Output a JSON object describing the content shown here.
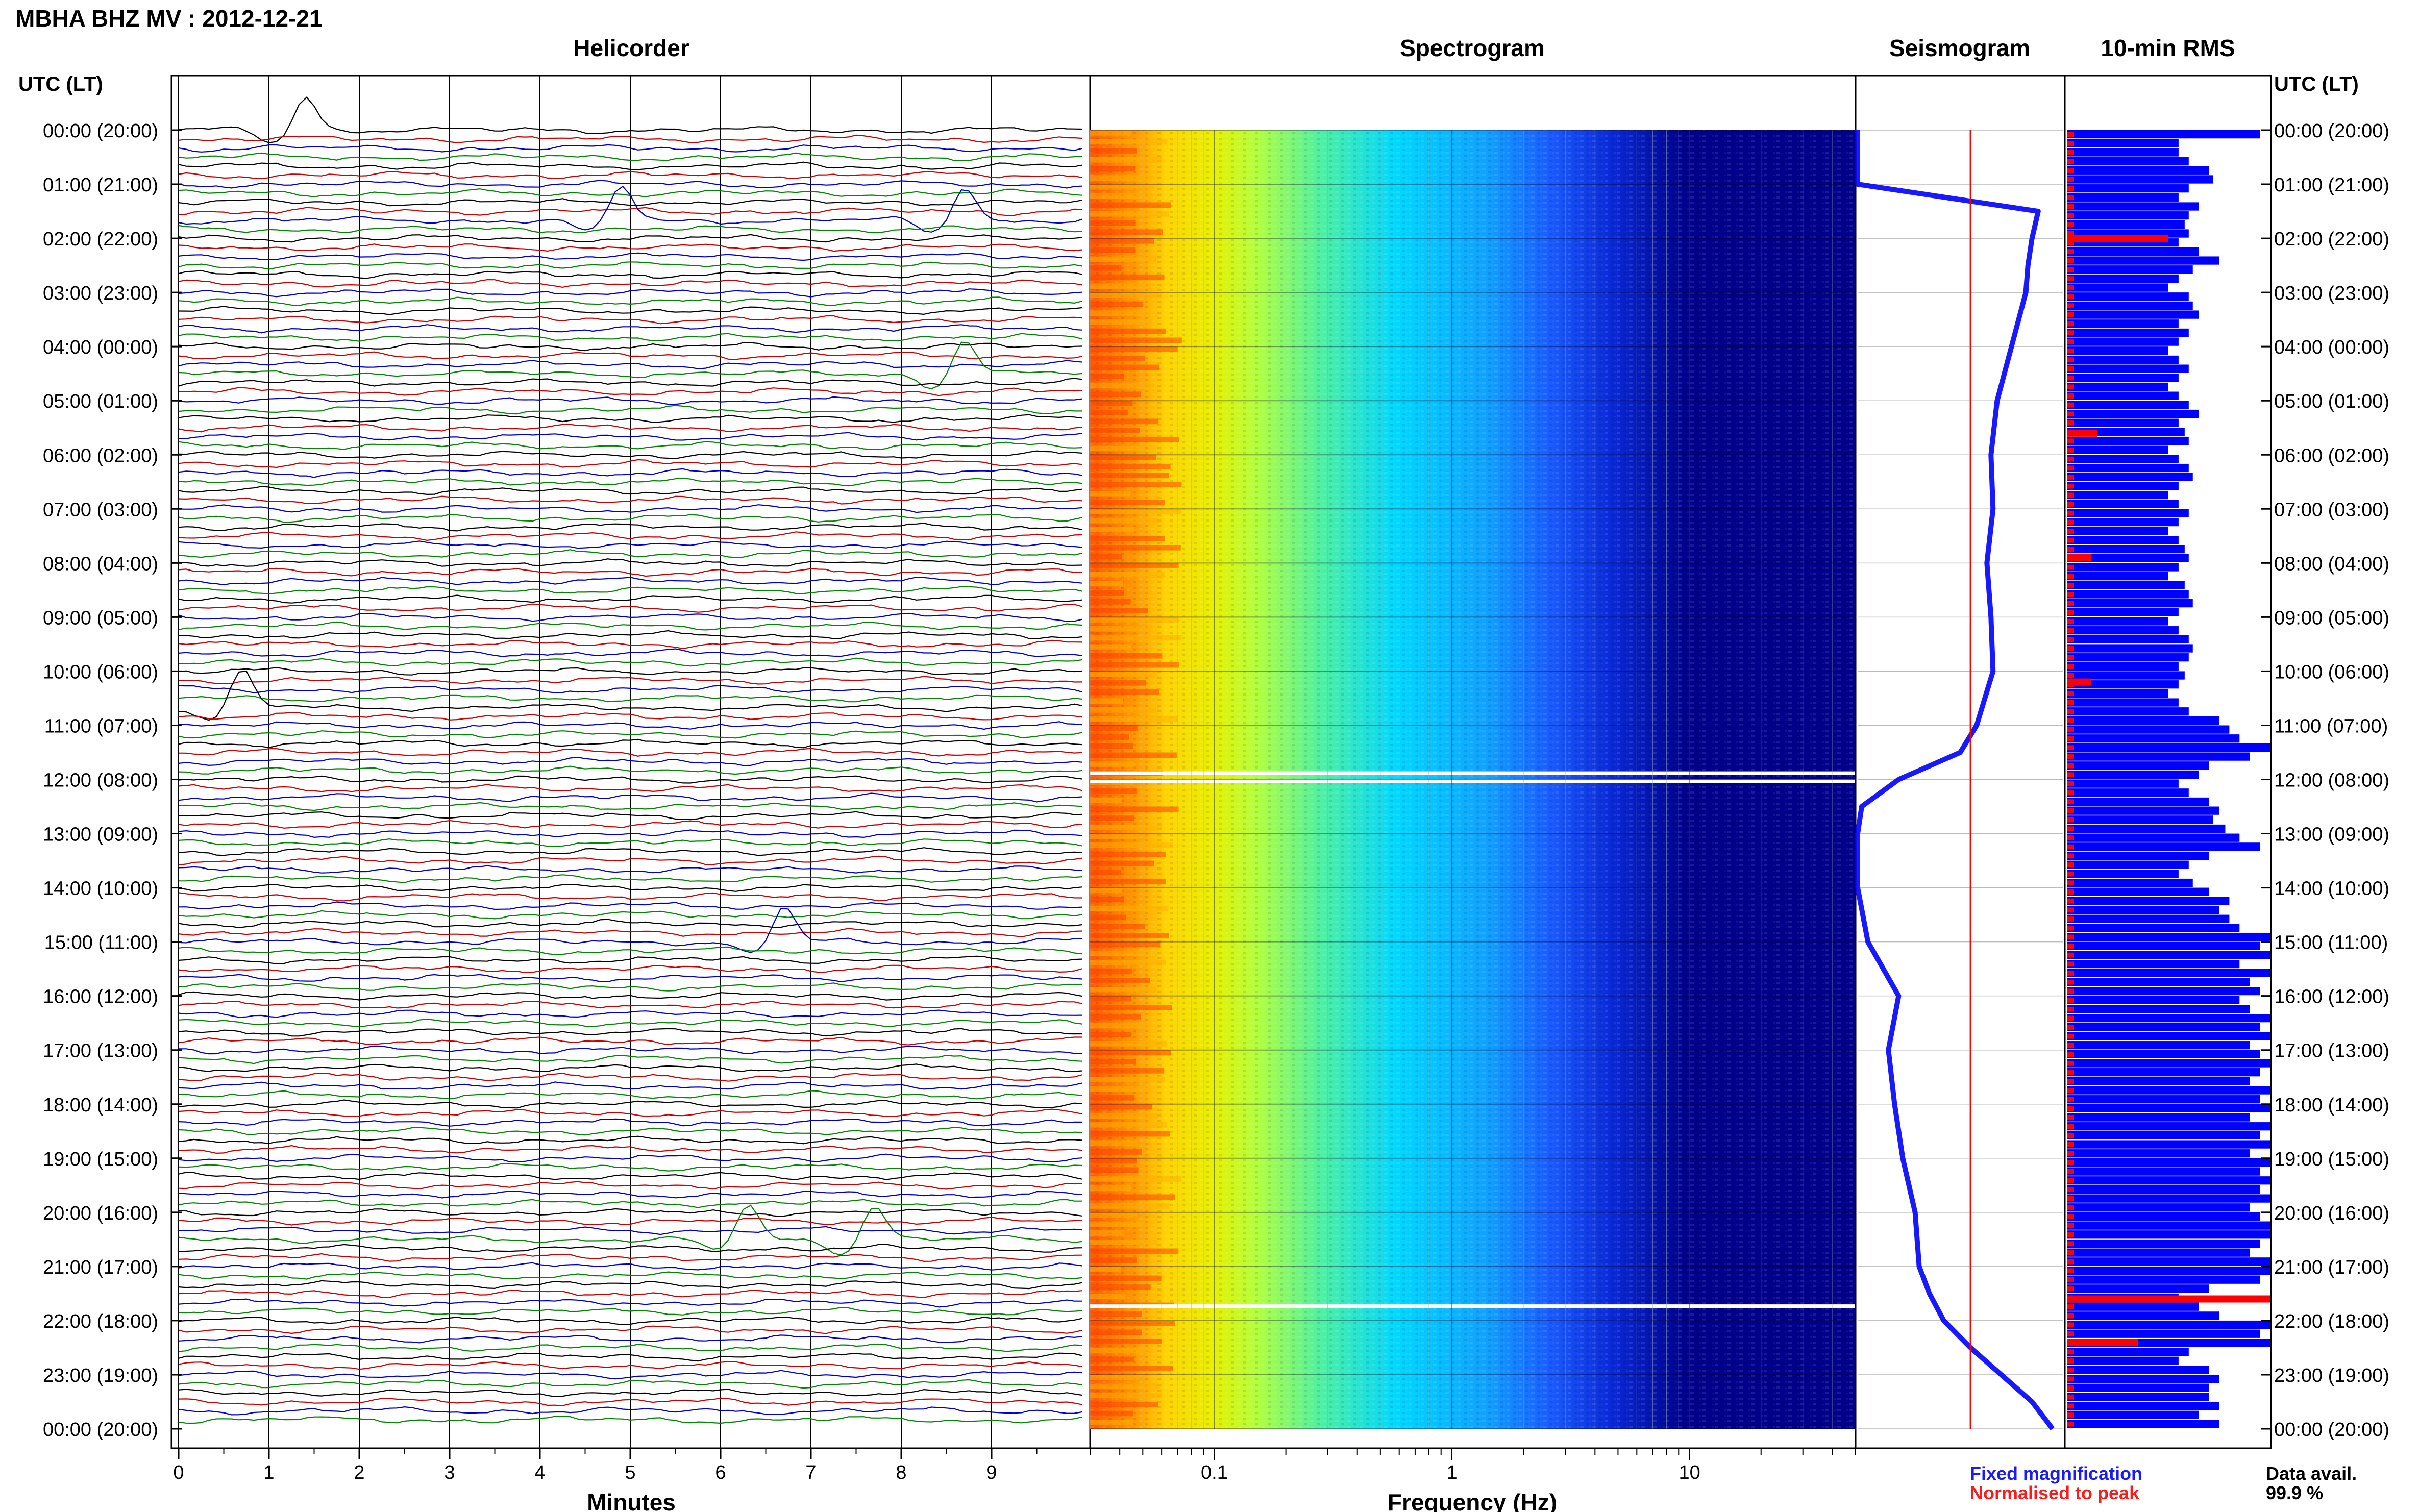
{
  "title": "MBHA BHZ MV : 2012-12-21",
  "panels": {
    "helicorder": "Helicorder",
    "spectrogram": "Spectrogram",
    "seismogram": "Seismogram",
    "rms": "10-min RMS"
  },
  "time_axis_label": "UTC (LT)",
  "time_labels": [
    "00:00 (20:00)",
    "01:00 (21:00)",
    "02:00 (22:00)",
    "03:00 (23:00)",
    "04:00 (00:00)",
    "05:00 (01:00)",
    "06:00 (02:00)",
    "07:00 (03:00)",
    "08:00 (04:00)",
    "09:00 (05:00)",
    "10:00 (06:00)",
    "11:00 (07:00)",
    "12:00 (08:00)",
    "13:00 (09:00)",
    "14:00 (10:00)",
    "15:00 (11:00)",
    "16:00 (12:00)",
    "17:00 (13:00)",
    "18:00 (14:00)",
    "19:00 (15:00)",
    "20:00 (16:00)",
    "21:00 (17:00)",
    "22:00 (18:00)",
    "23:00 (19:00)",
    "00:00 (20:00)"
  ],
  "minutes_axis": {
    "label": "Minutes",
    "ticks": [
      "0",
      "1",
      "2",
      "3",
      "4",
      "5",
      "6",
      "7",
      "8",
      "9"
    ]
  },
  "frequency_axis": {
    "label": "Frequency (Hz)",
    "ticks": [
      "0.1",
      "1",
      "10"
    ]
  },
  "legend": {
    "fixed": "Fixed magnification",
    "normalised": "Normalised to peak",
    "fixed_color": "#1a1aff",
    "normalised_color": "#ff1a1a"
  },
  "data_avail": {
    "label": "Data avail.",
    "value": "99.9 %"
  },
  "colors": {
    "trace_cycle": [
      "#000000",
      "#cc0000",
      "#0000cc",
      "#008800"
    ],
    "rms_fixed": "#0000ff",
    "rms_norm": "#ff0000",
    "spectro_low": "#00008b"
  },
  "chart_data": [
    {
      "type": "line",
      "title": "Helicorder",
      "xlabel": "Minutes",
      "xlim": [
        0,
        10
      ],
      "rows": 144,
      "row_minutes": 10,
      "events": [
        {
          "hour": 0.05,
          "minute": 1.4
        },
        {
          "hour": 1.8,
          "minute": 4.9
        },
        {
          "hour": 1.8,
          "minute": 8.7
        },
        {
          "hour": 4.5,
          "minute": 8.7
        },
        {
          "hour": 10.7,
          "minute": 0.7
        },
        {
          "hour": 15.0,
          "minute": 6.7
        },
        {
          "hour": 20.5,
          "minute": 6.3
        },
        {
          "hour": 20.5,
          "minute": 7.7
        }
      ]
    },
    {
      "type": "heatmap",
      "title": "Spectrogram",
      "xlabel": "Frequency (Hz)",
      "xscale": "log",
      "xlim": [
        0.03,
        50
      ],
      "gaps_hours": [
        11.85,
        12.0,
        21.7
      ]
    },
    {
      "type": "line",
      "title": "Seismogram",
      "series": [
        {
          "name": "Fixed magnification",
          "hours": [
            0,
            1,
            1.5,
            2,
            2.5,
            3,
            4,
            5,
            6,
            7,
            8,
            9,
            10,
            11,
            11.5,
            12,
            12.5,
            13,
            14,
            15,
            16,
            17,
            18,
            19,
            20,
            21,
            21.5,
            22,
            22.5,
            23,
            23.5,
            24
          ],
          "values": [
            0,
            0,
            0.88,
            0.85,
            0.83,
            0.82,
            0.75,
            0.68,
            0.65,
            0.66,
            0.63,
            0.65,
            0.66,
            0.58,
            0.5,
            0.2,
            0.02,
            0.0,
            0.0,
            0.05,
            0.2,
            0.15,
            0.18,
            0.22,
            0.28,
            0.3,
            0.35,
            0.42,
            0.55,
            0.7,
            0.85,
            0.95
          ]
        },
        {
          "name": "Normalised to peak",
          "constant": 0.55
        }
      ]
    },
    {
      "type": "bar",
      "title": "10-min RMS",
      "series": [
        {
          "name": "Fixed magnification",
          "values": [
            0.95,
            0.55,
            0.55,
            0.6,
            0.7,
            0.72,
            0.6,
            0.55,
            0.65,
            0.6,
            0.58,
            0.6,
            0.55,
            0.65,
            0.75,
            0.62,
            0.55,
            0.5,
            0.6,
            0.62,
            0.65,
            0.55,
            0.6,
            0.55,
            0.5,
            0.55,
            0.6,
            0.55,
            0.5,
            0.55,
            0.6,
            0.65,
            0.55,
            0.58,
            0.6,
            0.5,
            0.55,
            0.6,
            0.62,
            0.55,
            0.5,
            0.55,
            0.6,
            0.55,
            0.5,
            0.55,
            0.58,
            0.6,
            0.55,
            0.5,
            0.58,
            0.6,
            0.62,
            0.55,
            0.5,
            0.55,
            0.6,
            0.62,
            0.6,
            0.55,
            0.58,
            0.55,
            0.5,
            0.55,
            0.6,
            0.75,
            0.8,
            0.85,
            1.0,
            0.9,
            0.7,
            0.65,
            0.55,
            0.6,
            0.7,
            0.75,
            0.72,
            0.78,
            0.85,
            0.95,
            0.7,
            0.6,
            0.55,
            0.62,
            0.7,
            0.8,
            0.75,
            0.8,
            0.85,
            1.0,
            0.95,
            1.0,
            0.85,
            1.0,
            0.9,
            0.95,
            0.85,
            0.9,
            1.0,
            0.95,
            1.0,
            0.9,
            0.95,
            1.0,
            0.95,
            0.9,
            1.0,
            0.95,
            1.0,
            0.9,
            1.0,
            0.95,
            1.0,
            0.9,
            1.0,
            0.95,
            1.0,
            0.95,
            1.0,
            0.9,
            0.95,
            1.0,
            1.0,
            0.95,
            0.9,
            1.0,
            1.0,
            0.95,
            0.7,
            0.55,
            0.65,
            0.75,
            1.0,
            0.95,
            1.0,
            0.6,
            0.55,
            0.7,
            0.75,
            0.7,
            0.7,
            0.75,
            0.65,
            0.75
          ]
        },
        {
          "name": "Normalised to peak",
          "peaks": [
            {
              "hour": 2.0,
              "value": 0.5
            },
            {
              "hour": 5.6,
              "value": 0.15
            },
            {
              "hour": 7.9,
              "value": 0.12
            },
            {
              "hour": 10.2,
              "value": 0.12
            },
            {
              "hour": 21.6,
              "value": 1.0
            },
            {
              "hour": 22.4,
              "value": 0.35
            }
          ]
        }
      ]
    }
  ]
}
